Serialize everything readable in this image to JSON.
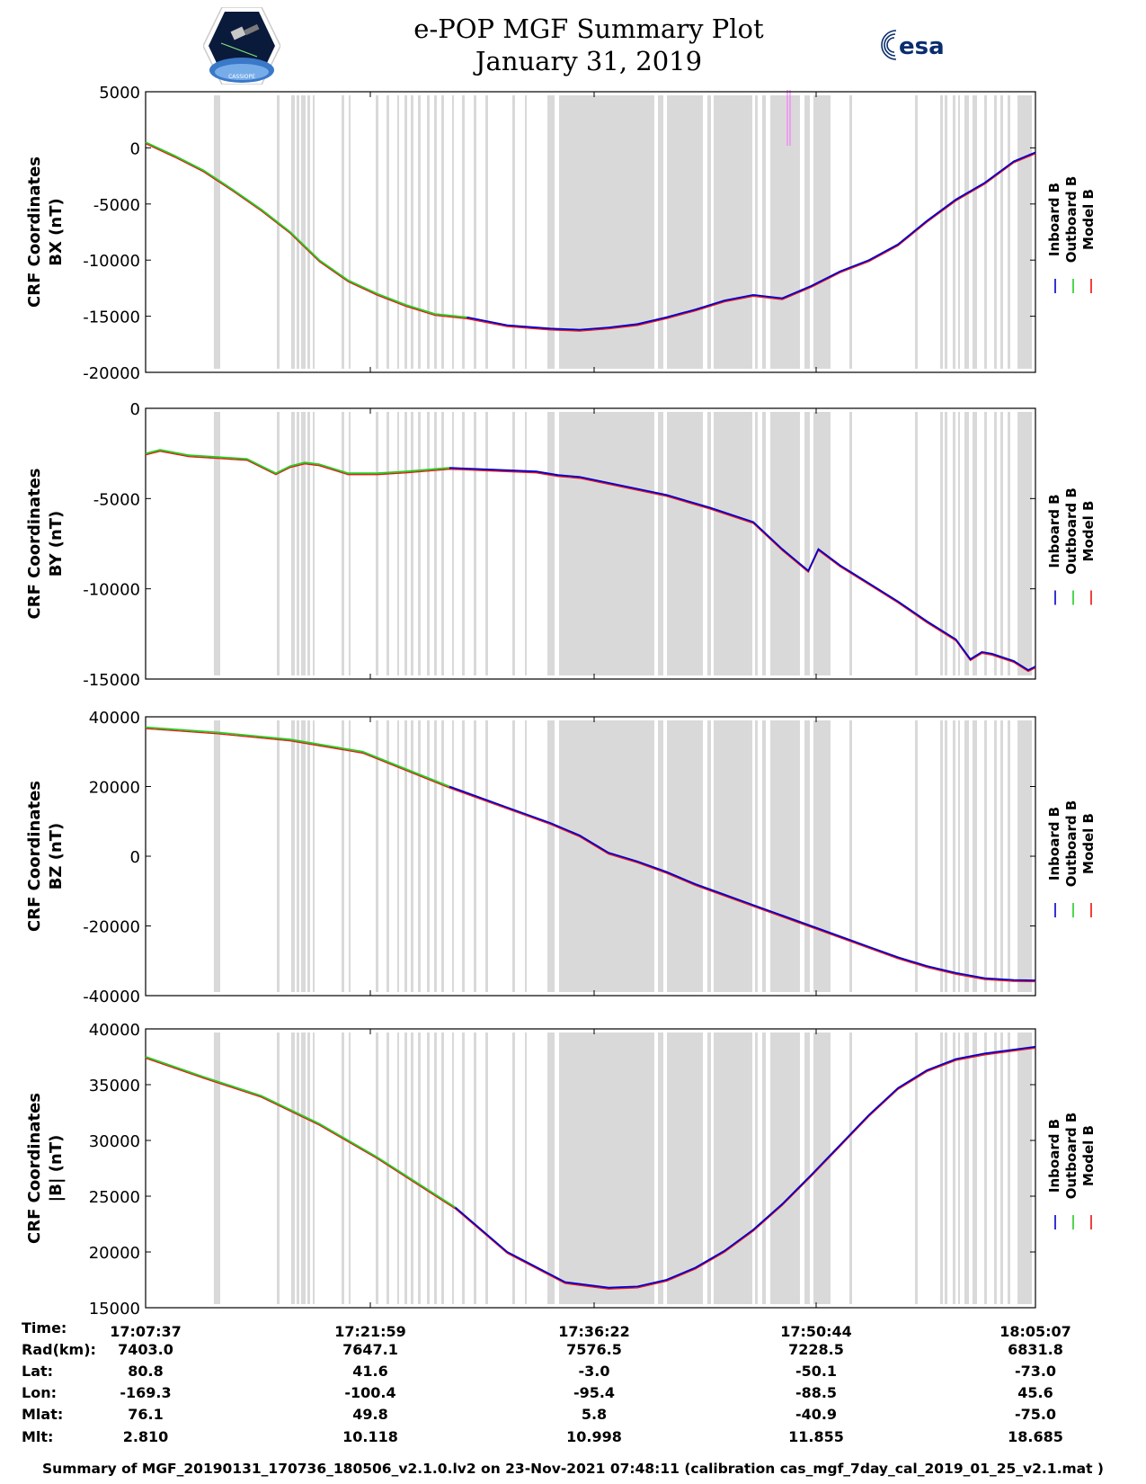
{
  "header": {
    "title_line1": "e-POP MGF Summary Plot",
    "title_line2": "January 31, 2019",
    "logo_left_text": "CASSIOPE",
    "logo_right_text": "esa"
  },
  "colors": {
    "inboard": "#0000cc",
    "outboard": "#22cc22",
    "model": "#ee1111",
    "gap": "#d9d9d9",
    "spike": "#ff66ff"
  },
  "legend": [
    "Inboard B",
    "Outboard B",
    "Model B"
  ],
  "chart_data": [
    {
      "type": "line",
      "ylabel_line1": "CRF Coordinates",
      "ylabel_line2": "BX (nT)",
      "ylim": [
        -20000,
        5000
      ],
      "yticks": [
        "5000",
        "0",
        "-5000",
        "-10000",
        "-15000",
        "-20000"
      ],
      "ytick_values": [
        5000,
        0,
        -5000,
        -10000,
        -15000,
        -20000
      ],
      "switch_t": 22.2,
      "series": [
        {
          "name": "Inboard / Outboard B",
          "t": [
            0,
            2,
            4,
            6,
            8,
            10,
            12,
            14,
            16,
            18,
            20,
            22.2,
            25,
            28,
            30,
            32,
            34,
            36,
            38,
            40,
            42,
            44,
            46,
            48,
            50,
            52,
            54,
            56,
            58,
            60,
            61.5
          ],
          "values": [
            500,
            -700,
            -2000,
            -3700,
            -5500,
            -7500,
            -10000,
            -11800,
            -13000,
            -14000,
            -14800,
            -15100,
            -15800,
            -16100,
            -16200,
            -16000,
            -15700,
            -15100,
            -14400,
            -13600,
            -13100,
            -13400,
            -12300,
            -11000,
            -10000,
            -8600,
            -6500,
            -4600,
            -3100,
            -1200,
            -400
          ]
        }
      ]
    },
    {
      "type": "line",
      "ylabel_line1": "CRF Coordinates",
      "ylabel_line2": "BY (nT)",
      "ylim": [
        -15000,
        0
      ],
      "yticks": [
        "0",
        "-5000",
        "-10000",
        "-15000"
      ],
      "ytick_values": [
        0,
        -5000,
        -10000,
        -15000
      ],
      "switch_t": 21.0,
      "series": [
        {
          "name": "Inboard / Outboard B",
          "t": [
            0,
            1,
            3,
            5,
            7,
            9,
            10,
            11,
            12,
            14,
            16,
            18,
            21,
            24,
            27,
            28.5,
            30,
            33,
            36,
            39,
            42,
            44,
            45.8,
            46.5,
            48,
            50,
            52,
            54,
            56,
            57,
            57.8,
            58.5,
            60,
            61,
            61.5
          ],
          "values": [
            -2500,
            -2300,
            -2600,
            -2700,
            -2800,
            -3600,
            -3200,
            -3000,
            -3100,
            -3600,
            -3600,
            -3500,
            -3300,
            -3400,
            -3500,
            -3700,
            -3800,
            -4300,
            -4800,
            -5500,
            -6300,
            -7800,
            -9000,
            -7800,
            -8700,
            -9700,
            -10700,
            -11800,
            -12800,
            -13900,
            -13500,
            -13600,
            -14000,
            -14500,
            -14300
          ]
        }
      ]
    },
    {
      "type": "line",
      "ylabel_line1": "CRF Coordinates",
      "ylabel_line2": "BZ (nT)",
      "ylim": [
        -40000,
        40000
      ],
      "yticks": [
        "40000",
        "20000",
        "0",
        "-20000",
        "-40000"
      ],
      "ytick_values": [
        40000,
        20000,
        0,
        -20000,
        -40000
      ],
      "switch_t": 21.0,
      "series": [
        {
          "name": "Inboard / Outboard B",
          "t": [
            0,
            5,
            10,
            15,
            21,
            25,
            28,
            30,
            32,
            34,
            36,
            38,
            40,
            42,
            44,
            46,
            48,
            50,
            52,
            54,
            56,
            58,
            60,
            61.5
          ],
          "values": [
            37000,
            35500,
            33500,
            30000,
            20000,
            14000,
            9500,
            6000,
            1000,
            -1500,
            -4500,
            -8000,
            -11000,
            -14000,
            -17000,
            -20000,
            -23000,
            -26000,
            -29000,
            -31500,
            -33500,
            -35000,
            -35500,
            -35600
          ]
        }
      ]
    },
    {
      "type": "line",
      "ylabel_line1": "CRF Coordinates",
      "ylabel_line2": "|B| (nT)",
      "ylim": [
        15000,
        40000
      ],
      "yticks": [
        "40000",
        "35000",
        "30000",
        "25000",
        "20000",
        "15000"
      ],
      "ytick_values": [
        40000,
        35000,
        30000,
        25000,
        20000,
        15000
      ],
      "switch_t": 21.4,
      "series": [
        {
          "name": "Inboard / Outboard B",
          "t": [
            0,
            4,
            8,
            12,
            16,
            21.4,
            25,
            29,
            32,
            34,
            36,
            38,
            40,
            42,
            44,
            46,
            48,
            50,
            52,
            54,
            56,
            58,
            61.5
          ],
          "values": [
            37500,
            35700,
            34000,
            31500,
            28500,
            24000,
            20000,
            17300,
            16800,
            16900,
            17500,
            18600,
            20100,
            22000,
            24300,
            26900,
            29600,
            32300,
            34700,
            36300,
            37300,
            37800,
            38400
          ]
        }
      ]
    }
  ],
  "time_axis": {
    "labels": [
      "17:07:37",
      "17:21:59",
      "17:36:22",
      "17:50:44",
      "18:05:07"
    ]
  },
  "ephemeris": {
    "labels": [
      "Time:",
      "Rad(km):",
      "Lat:",
      "Lon:",
      "Mlat:",
      "Mlt:"
    ],
    "rows": [
      [
        "17:07:37",
        "17:21:59",
        "17:36:22",
        "17:50:44",
        "18:05:07"
      ],
      [
        "7403.0",
        "7647.1",
        "7576.5",
        "7228.5",
        "6831.8"
      ],
      [
        "80.8",
        "41.6",
        "-3.0",
        "-50.1",
        "-73.0"
      ],
      [
        "-169.3",
        "-100.4",
        "-95.4",
        "-88.5",
        "45.6"
      ],
      [
        "76.1",
        "49.8",
        "5.8",
        "-40.9",
        "-75.0"
      ],
      [
        "2.810",
        "10.118",
        "10.998",
        "11.855",
        "18.685"
      ]
    ]
  },
  "footer": "Summary of MGF_20190131_170736_180506_v2.1.0.lv2 on 23-Nov-2021 07:48:11 (calibration cas_mgf_7day_cal_2019_01_25_v2.1.mat )"
}
